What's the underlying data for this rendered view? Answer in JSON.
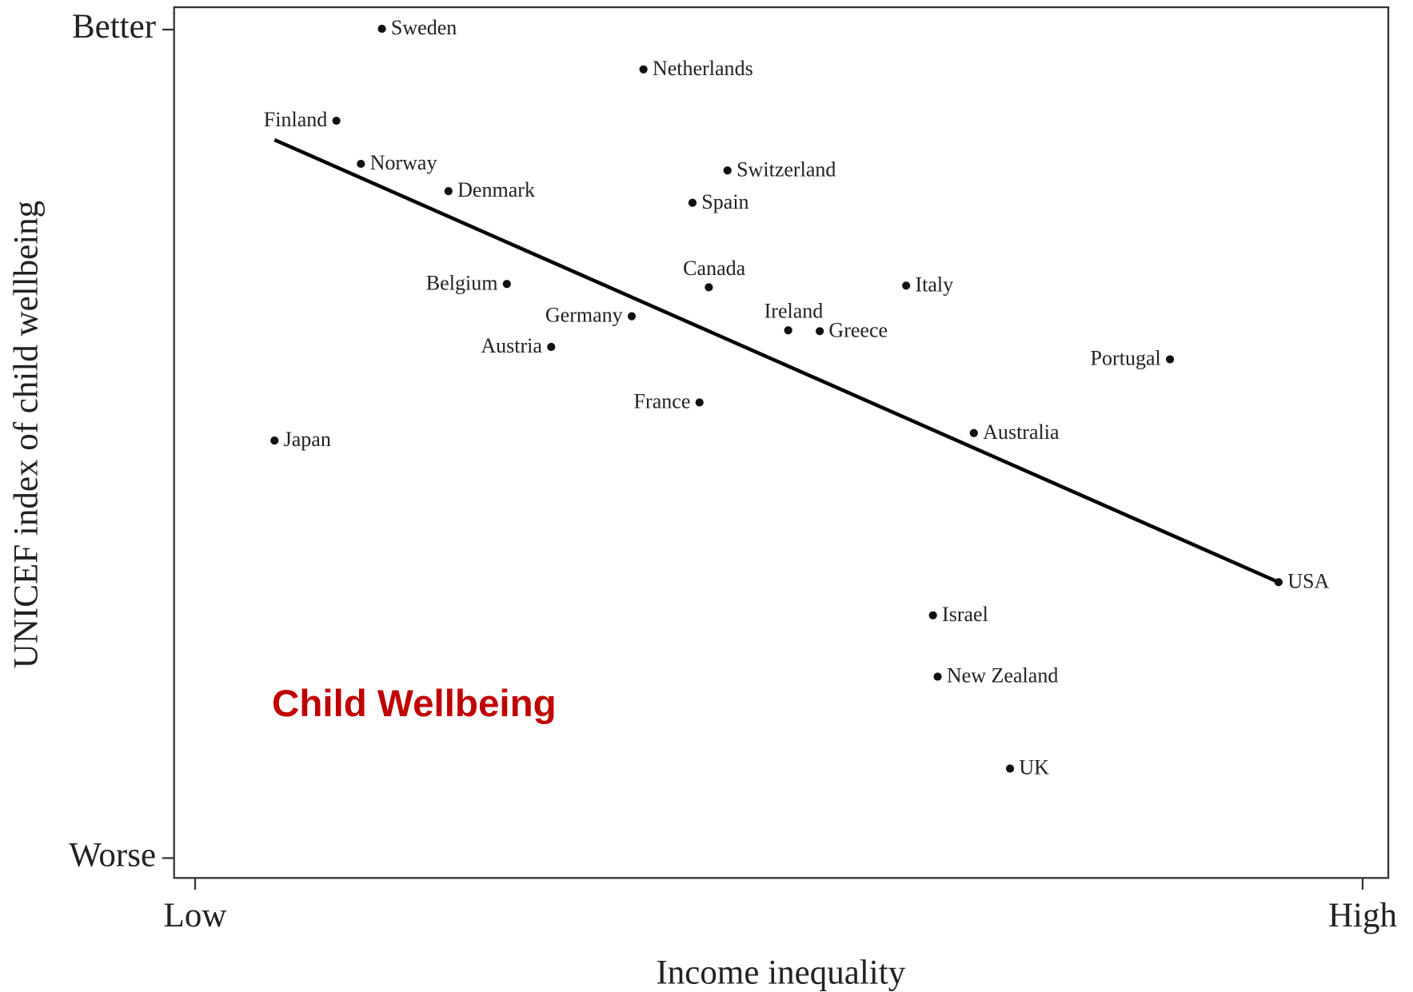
{
  "chart_data": {
    "type": "scatter",
    "x_label": "Income inequality",
    "y_label": "UNICEF index of child wellbeing",
    "annotation": "Child Wellbeing",
    "color": "#111111",
    "labels": [
      "Sweden",
      "Netherlands",
      "Finland",
      "Norway",
      "Denmark",
      "Switzerland",
      "Spain",
      "Belgium",
      "Canada",
      "Italy",
      "Germany",
      "Ireland",
      "Greece",
      "Austria",
      "Portugal",
      "France",
      "Japan",
      "Australia",
      "USA",
      "Israel",
      "New Zealand",
      "UK"
    ],
    "x": [
      0.16,
      0.384,
      0.121,
      0.142,
      0.217,
      0.456,
      0.426,
      0.267,
      0.44,
      0.609,
      0.374,
      0.508,
      0.535,
      0.305,
      0.835,
      0.432,
      0.068,
      0.667,
      0.928,
      0.632,
      0.636,
      0.698
    ],
    "y": [
      1.001,
      0.952,
      0.89,
      0.838,
      0.805,
      0.83,
      0.791,
      0.693,
      0.689,
      0.691,
      0.654,
      0.637,
      0.636,
      0.617,
      0.602,
      0.55,
      0.504,
      0.513,
      0.333,
      0.293,
      0.219,
      0.108
    ],
    "trend_line": {
      "x": [
        0.068,
        0.928
      ],
      "y": [
        0.867,
        0.333
      ]
    },
    "xlim": [
      -0.018,
      1.022
    ],
    "ylim": [
      -0.024,
      1.027
    ],
    "xticks": [
      {
        "value": 0,
        "label": "Low"
      },
      {
        "value": 1,
        "label": "High"
      }
    ],
    "yticks": [
      {
        "value": 0,
        "label": "Worse"
      },
      {
        "value": 1,
        "label": "Better"
      }
    ]
  }
}
